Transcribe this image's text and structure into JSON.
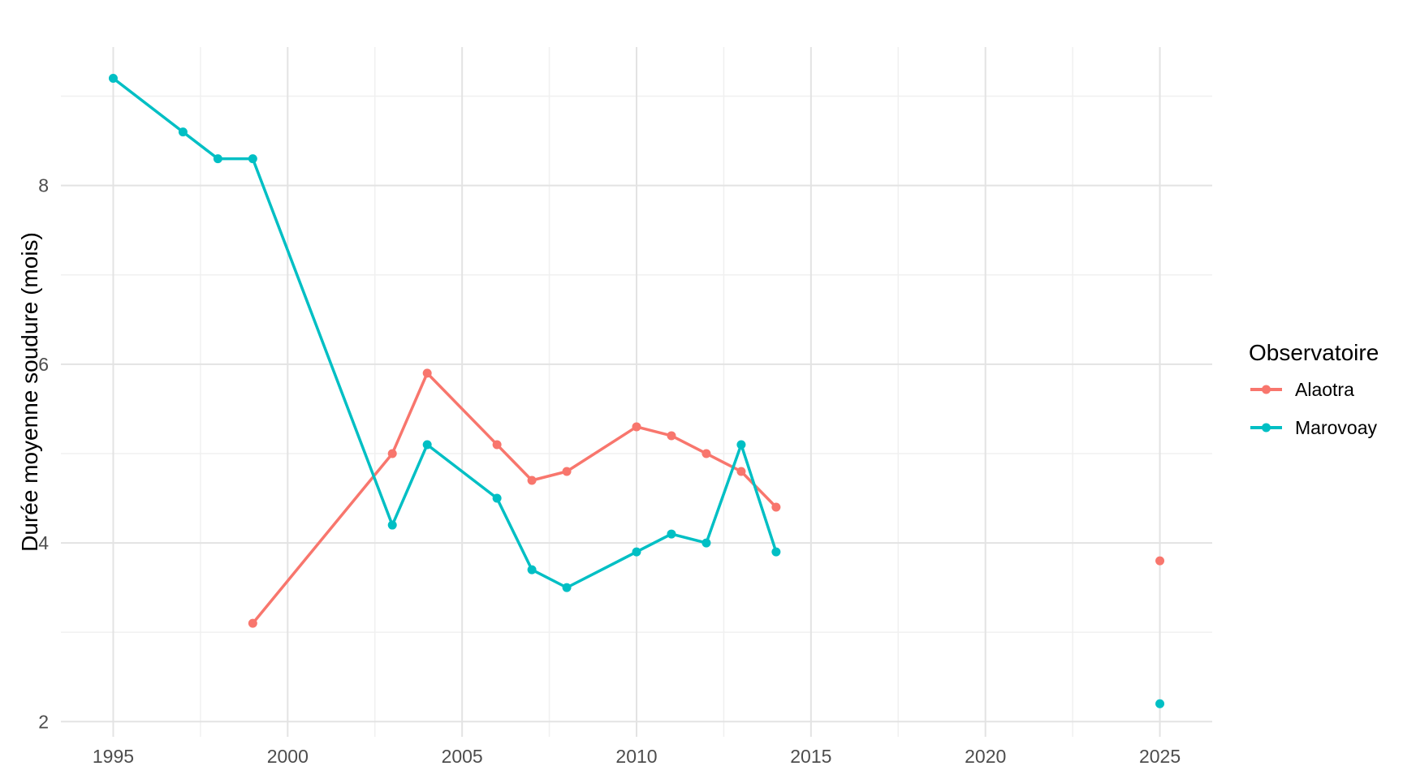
{
  "chart_data": {
    "type": "line",
    "title": "",
    "xlabel": "",
    "ylabel": "Durée moyenne soudure (mois)",
    "legend_title": "Observatoire",
    "legend_position": "right",
    "grid": true,
    "xlim": [
      1993.5,
      2026.5
    ],
    "ylim": [
      1.83,
      9.55
    ],
    "x_ticks": [
      1995,
      2000,
      2005,
      2010,
      2015,
      2020,
      2025
    ],
    "y_ticks": [
      2,
      4,
      6,
      8
    ],
    "x_minor_gridlines": [
      1997.5,
      2002.5,
      2007.5,
      2012.5,
      2017.5,
      2022.5
    ],
    "y_minor_gridlines": [
      3,
      5,
      7,
      9
    ],
    "series": [
      {
        "name": "Alaotra",
        "color": "#F8766D",
        "segments": [
          [
            [
              1999,
              3.1
            ],
            [
              2003,
              5.0
            ],
            [
              2004,
              5.9
            ],
            [
              2006,
              5.1
            ],
            [
              2007,
              4.7
            ],
            [
              2008,
              4.8
            ],
            [
              2010,
              5.3
            ],
            [
              2011,
              5.2
            ],
            [
              2012,
              5.0
            ],
            [
              2013,
              4.8
            ],
            [
              2014,
              4.4
            ]
          ],
          [
            [
              2025,
              3.8
            ]
          ]
        ]
      },
      {
        "name": "Marovoay",
        "color": "#00BFC4",
        "segments": [
          [
            [
              1995,
              9.2
            ],
            [
              1997,
              8.6
            ],
            [
              1998,
              8.3
            ],
            [
              1999,
              8.3
            ],
            [
              2003,
              4.2
            ],
            [
              2004,
              5.1
            ],
            [
              2006,
              4.5
            ],
            [
              2007,
              3.7
            ],
            [
              2008,
              3.5
            ],
            [
              2010,
              3.9
            ],
            [
              2011,
              4.1
            ],
            [
              2012,
              4.0
            ],
            [
              2013,
              5.1
            ],
            [
              2014,
              3.9
            ]
          ],
          [
            [
              2025,
              2.2
            ]
          ]
        ]
      }
    ]
  },
  "ui_colors": {
    "background": "#FFFFFF",
    "grid_major": "#E3E3E3",
    "grid_minor": "#F0F0F0",
    "tick_text": "#4D4D4D",
    "title_text": "#000000"
  }
}
